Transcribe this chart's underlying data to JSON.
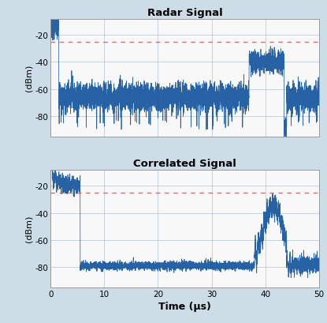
{
  "title1": "Radar Signal",
  "title2": "Correlated Signal",
  "xlabel": "Time (μs)",
  "ylabel": "(dBm)",
  "xlim": [
    0,
    50
  ],
  "ylim": [
    -95,
    -8
  ],
  "yticks": [
    -80,
    -60,
    -40,
    -20
  ],
  "xticks": [
    0,
    10,
    20,
    30,
    40,
    50
  ],
  "dashed_line_y": -25,
  "signal_color": "#1a5aa0",
  "dashed_color": "#d06060",
  "bg_color": "#ccdde8",
  "plot_bg": "#f8f8f8",
  "grid_color": "#aabccc"
}
